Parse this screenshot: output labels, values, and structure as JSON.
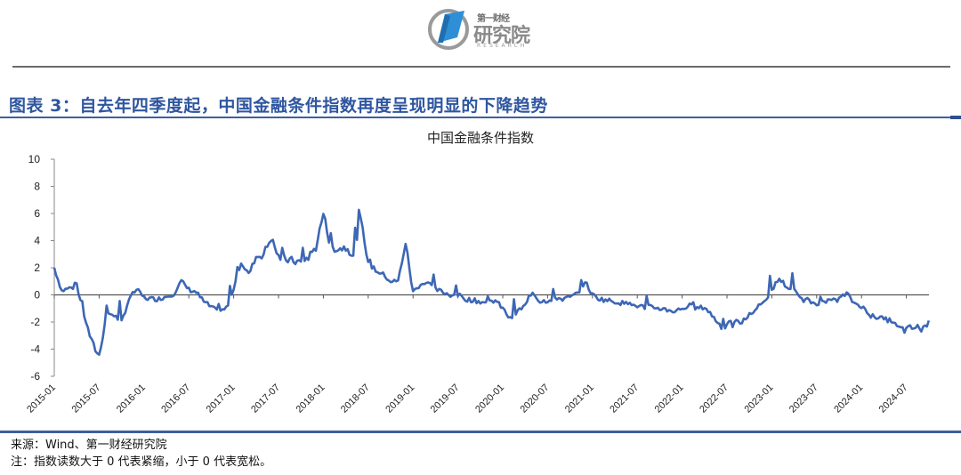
{
  "logo": {
    "top_text": "第一财经",
    "main_text": "研究院",
    "sub_text": "RESEARCH"
  },
  "figure": {
    "title": "图表 3：自去年四季度起，中国金融条件指数再度呈现明显的下降趋势"
  },
  "footnotes": {
    "source": "来源：Wind、第一财经研究院",
    "note": "注：指数读数大于 0 代表紧缩，小于 0 代表宽松。"
  },
  "colors": {
    "line": "#3d67b5",
    "title": "#2f56a0",
    "rule": "#3e5f9b",
    "axis": "#555555"
  },
  "chart_data": {
    "type": "line",
    "title": "中国金融条件指数",
    "xlabel": "",
    "ylabel": "",
    "ylim": [
      -6,
      10
    ],
    "yticks": [
      10,
      8,
      6,
      4,
      2,
      0,
      -2,
      -4,
      -6
    ],
    "grid": false,
    "legend": "none",
    "x_tick_labels": [
      "2015-01",
      "2015-07",
      "2016-01",
      "2016-07",
      "2017-01",
      "2017-07",
      "2018-01",
      "2018-07",
      "2019-01",
      "2019-07",
      "2020-01",
      "2020-07",
      "2021-01",
      "2021-07",
      "2022-01",
      "2022-07",
      "2023-01",
      "2023-07",
      "2024-01",
      "2024-07"
    ],
    "series": [
      {
        "name": "中国金融条件指数",
        "x": [
          "2015-01",
          "2015-02",
          "2015-03",
          "2015-04",
          "2015-05",
          "2015-06",
          "2015-07",
          "2015-08",
          "2015-09",
          "2015-10",
          "2015-11",
          "2015-12",
          "2016-01",
          "2016-02",
          "2016-03",
          "2016-04",
          "2016-05",
          "2016-06",
          "2016-07",
          "2016-08",
          "2016-09",
          "2016-10",
          "2016-11",
          "2016-12",
          "2017-01",
          "2017-02",
          "2017-03",
          "2017-04",
          "2017-05",
          "2017-06",
          "2017-07",
          "2017-08",
          "2017-09",
          "2017-10",
          "2017-11",
          "2017-12",
          "2018-01",
          "2018-02",
          "2018-03",
          "2018-04",
          "2018-05",
          "2018-06",
          "2018-07",
          "2018-08",
          "2018-09",
          "2018-10",
          "2018-11",
          "2018-12",
          "2019-01",
          "2019-02",
          "2019-03",
          "2019-04",
          "2019-05",
          "2019-06",
          "2019-07",
          "2019-08",
          "2019-09",
          "2019-10",
          "2019-11",
          "2019-12",
          "2020-01",
          "2020-02",
          "2020-03",
          "2020-04",
          "2020-05",
          "2020-06",
          "2020-07",
          "2020-08",
          "2020-09",
          "2020-10",
          "2020-11",
          "2020-12",
          "2021-01",
          "2021-02",
          "2021-03",
          "2021-04",
          "2021-05",
          "2021-06",
          "2021-07",
          "2021-08",
          "2021-09",
          "2021-10",
          "2021-11",
          "2021-12",
          "2022-01",
          "2022-02",
          "2022-03",
          "2022-04",
          "2022-05",
          "2022-06",
          "2022-07",
          "2022-08",
          "2022-09",
          "2022-10",
          "2022-11",
          "2022-12",
          "2023-01",
          "2023-02",
          "2023-03",
          "2023-04",
          "2023-05",
          "2023-06",
          "2023-07",
          "2023-08",
          "2023-09",
          "2023-10",
          "2023-11",
          "2023-12",
          "2024-01",
          "2024-02",
          "2024-03",
          "2024-04",
          "2024-05",
          "2024-06",
          "2024-07",
          "2024-08",
          "2024-09",
          "2024-10"
        ],
        "values": [
          2.0,
          0.3,
          0.5,
          0.6,
          -1.5,
          -3.5,
          -4.5,
          -1.3,
          -1.5,
          -2.0,
          -0.3,
          0.4,
          -0.2,
          -0.3,
          -0.3,
          -0.1,
          0.1,
          1.0,
          0.4,
          0.2,
          -0.5,
          -0.9,
          -1.3,
          -1.0,
          0.5,
          2.5,
          1.5,
          2.8,
          3.0,
          4.2,
          2.8,
          2.6,
          2.5,
          2.4,
          2.8,
          3.5,
          6.0,
          3.5,
          3.4,
          3.5,
          3.0,
          5.5,
          2.5,
          1.8,
          1.5,
          1.0,
          1.0,
          3.8,
          0.2,
          0.8,
          0.9,
          0.4,
          0.2,
          0.0,
          0.0,
          -0.3,
          -0.4,
          -0.5,
          -0.6,
          -0.4,
          -1.0,
          -1.8,
          -1.2,
          -0.8,
          0.2,
          -0.5,
          -0.4,
          -0.2,
          -0.3,
          -0.2,
          0.1,
          1.0,
          0.0,
          -0.3,
          -0.4,
          -0.5,
          -0.6,
          -0.7,
          -0.8,
          -0.9,
          -0.9,
          -1.0,
          -1.1,
          -1.2,
          -1.0,
          -0.8,
          -1.0,
          -0.9,
          -1.5,
          -2.2,
          -2.3,
          -2.1,
          -2.0,
          -1.5,
          -1.0,
          -0.5,
          0.4,
          1.2,
          0.6,
          0.3,
          -0.3,
          -0.5,
          -0.6,
          -0.5,
          -0.5,
          -0.3,
          0.1,
          -0.6,
          -0.8,
          -1.5,
          -1.6,
          -1.8,
          -1.9,
          -2.5,
          -2.6,
          -2.4,
          -2.5,
          -2.1
        ]
      }
    ]
  }
}
